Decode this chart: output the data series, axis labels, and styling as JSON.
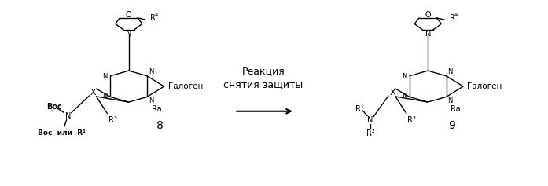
{
  "background_color": "#ffffff",
  "fig_width": 6.97,
  "fig_height": 2.37,
  "dpi": 100,
  "reaction_line1": "Реакция",
  "reaction_line2": "снятия защиты",
  "halogen": "Галоген",
  "ra": "Ra",
  "compound8": "8",
  "compound9": "9",
  "line_color": "#000000",
  "font_size": 8,
  "font_size_sm": 7
}
